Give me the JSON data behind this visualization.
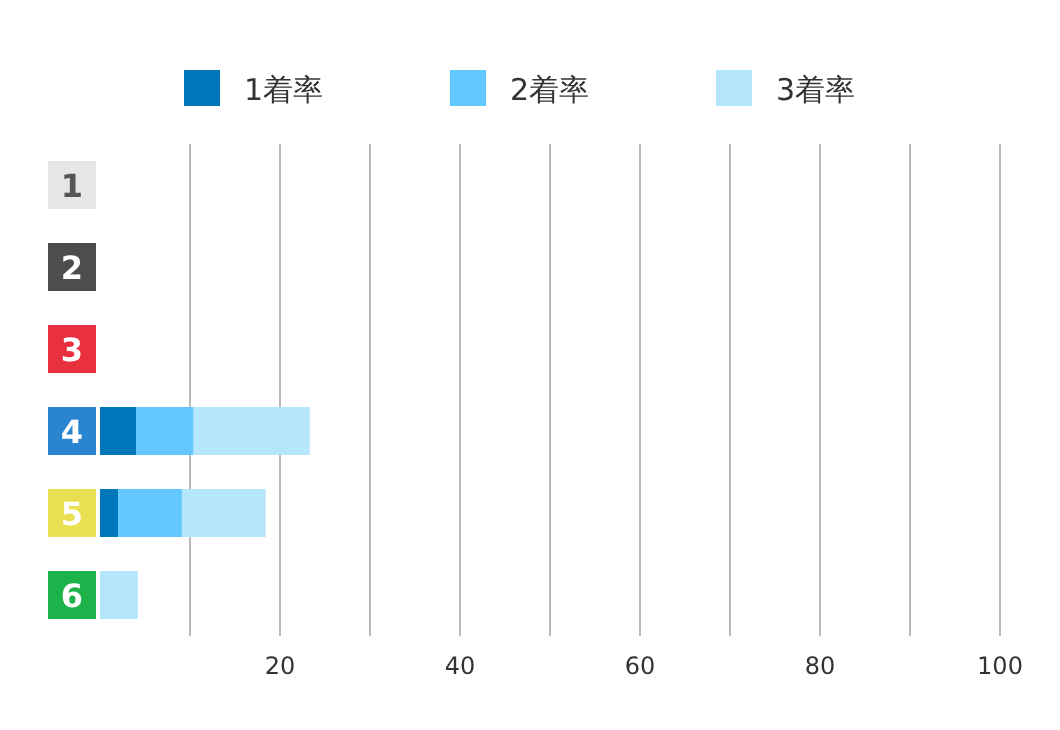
{
  "chart_data": {
    "type": "bar",
    "orientation": "horizontal",
    "stacked": true,
    "categories": [
      "1",
      "2",
      "3",
      "4",
      "5",
      "6"
    ],
    "series": [
      {
        "name": "1着率",
        "color": "#0077bb",
        "values": [
          null,
          null,
          null,
          4.0,
          2.0,
          null
        ]
      },
      {
        "name": "2着率",
        "color": "#62c8ff",
        "values": [
          null,
          null,
          null,
          6.4,
          7.1,
          null
        ]
      },
      {
        "name": "3着率",
        "color": "#b5e7fc",
        "values": [
          null,
          null,
          null,
          12.9,
          9.3,
          4.2
        ]
      }
    ],
    "xlim": [
      0,
      100
    ],
    "xticks": [
      {
        "value": 10,
        "label": null
      },
      20,
      {
        "value": 30,
        "label": null
      },
      40,
      {
        "value": 50,
        "label": null
      },
      60,
      {
        "value": 70,
        "label": null
      },
      80,
      {
        "value": 90,
        "label": null
      },
      100
    ],
    "grid": "x",
    "legend": "top"
  }
}
